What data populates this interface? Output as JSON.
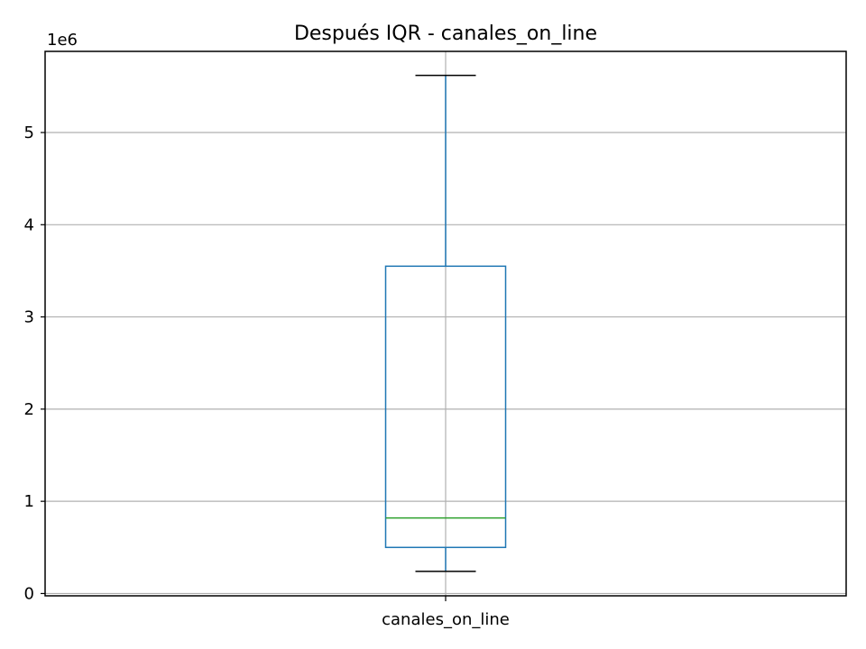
{
  "chart_data": {
    "type": "box",
    "title": "Después IQR - canales_on_line",
    "xlabel": "",
    "ylabel": "",
    "y_scale_label": "1e6",
    "categories": [
      "canales_on_line"
    ],
    "series": [
      {
        "whisker_low": 240000,
        "q1": 500000,
        "median": 820000,
        "q3": 3550000,
        "whisker_high": 5620000
      }
    ],
    "y_ticks": [
      0,
      1000000,
      2000000,
      3000000,
      4000000,
      5000000
    ],
    "y_tick_labels": [
      "0",
      "1",
      "2",
      "3",
      "4",
      "5"
    ],
    "ylim": [
      -25000,
      5880000
    ],
    "grid": true,
    "colors": {
      "box": "#1f77b4",
      "median": "#2ca02c",
      "whisker_cap": "#000000",
      "grid": "#b0b0b0",
      "frame": "#000000"
    }
  }
}
